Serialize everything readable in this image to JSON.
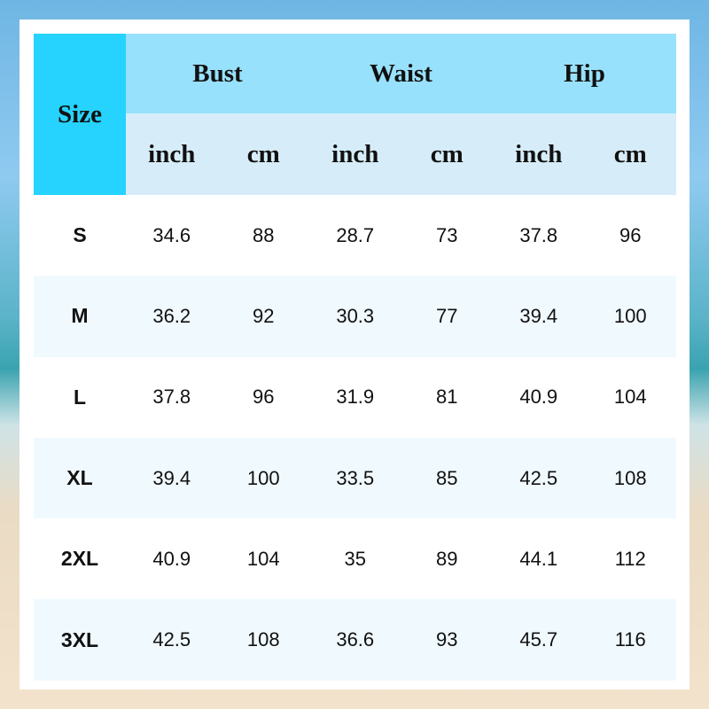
{
  "header": {
    "size_label": "Size",
    "groups": [
      "Bust",
      "Waist",
      "Hip"
    ],
    "units": [
      "inch",
      "cm",
      "inch",
      "cm",
      "inch",
      "cm"
    ]
  },
  "colors": {
    "size_header": "#26d3fe",
    "group_header": "#98e1fc",
    "unit_header": "#d6edf9",
    "alt_row": "#f0f9fe"
  },
  "rows": [
    {
      "size": "S",
      "values": [
        "34.6",
        "88",
        "28.7",
        "73",
        "37.8",
        "96"
      ]
    },
    {
      "size": "M",
      "values": [
        "36.2",
        "92",
        "30.3",
        "77",
        "39.4",
        "100"
      ]
    },
    {
      "size": "L",
      "values": [
        "37.8",
        "96",
        "31.9",
        "81",
        "40.9",
        "104"
      ]
    },
    {
      "size": "XL",
      "values": [
        "39.4",
        "100",
        "33.5",
        "85",
        "42.5",
        "108"
      ]
    },
    {
      "size": "2XL",
      "values": [
        "40.9",
        "104",
        "35",
        "89",
        "44.1",
        "112"
      ]
    },
    {
      "size": "3XL",
      "values": [
        "42.5",
        "108",
        "36.6",
        "93",
        "45.7",
        "116"
      ]
    }
  ]
}
